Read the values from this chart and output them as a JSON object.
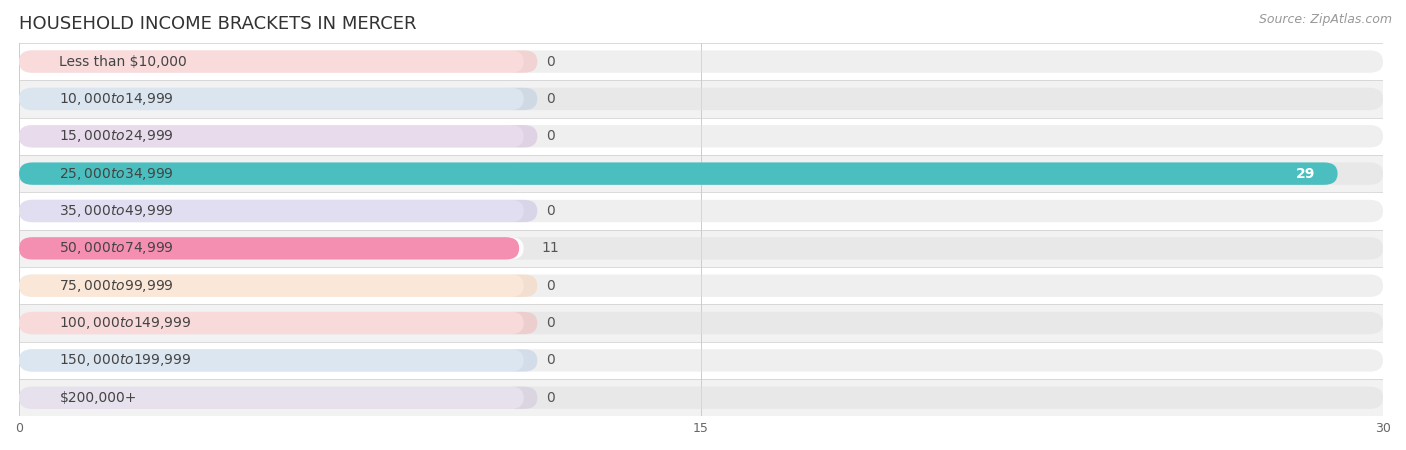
{
  "title": "HOUSEHOLD INCOME BRACKETS IN MERCER",
  "source": "Source: ZipAtlas.com",
  "categories": [
    "Less than $10,000",
    "$10,000 to $14,999",
    "$15,000 to $24,999",
    "$25,000 to $34,999",
    "$35,000 to $49,999",
    "$50,000 to $74,999",
    "$75,000 to $99,999",
    "$100,000 to $149,999",
    "$150,000 to $199,999",
    "$200,000+"
  ],
  "values": [
    0,
    0,
    0,
    29,
    0,
    11,
    0,
    0,
    0,
    0
  ],
  "bar_colors": [
    "#f4a9a8",
    "#a8c4e0",
    "#c9a8d4",
    "#4bbfbf",
    "#b8b0e0",
    "#f48fb1",
    "#f7c8a0",
    "#f4a9a8",
    "#a8c4e0",
    "#c9b8d8"
  ],
  "background_color": "#ffffff",
  "row_alt_color": "#f2f2f2",
  "row_base_color": "#ffffff",
  "xlim": [
    0,
    30
  ],
  "xticks": [
    0,
    15,
    30
  ],
  "title_fontsize": 13,
  "source_fontsize": 9,
  "label_fontsize": 10,
  "category_fontsize": 10,
  "bar_height": 0.6,
  "pill_bg_color": "#e8e8e8",
  "pill_alpha": 0.5
}
